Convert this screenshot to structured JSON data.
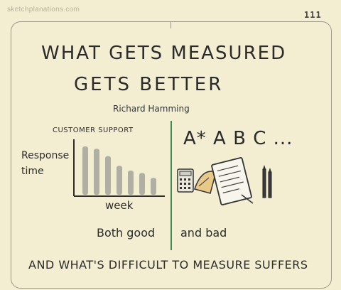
{
  "watermark": "sketchplanations.com",
  "page_number": "111",
  "title": {
    "line1": "WHAT GETS MEASURED",
    "line2": "GETS BETTER",
    "author": "Richard Hamming"
  },
  "left_panel": {
    "label": "CUSTOMER SUPPORT",
    "ylabel_line1": "Response",
    "ylabel_line2": "time",
    "xlabel": "week",
    "caption": "Both good",
    "chart_values": [
      10,
      9.5,
      8,
      6,
      5,
      4.5,
      3.5
    ]
  },
  "right_panel": {
    "grades": "A* A B C ...",
    "caption": "and bad"
  },
  "footer": "AND WHAT'S DIFFICULT TO MEASURE SUFFERS",
  "colors": {
    "paper": "#f3eed2",
    "ink": "#2b2b2b",
    "divider": "#3e8a55",
    "bars": "#9a9a94"
  }
}
